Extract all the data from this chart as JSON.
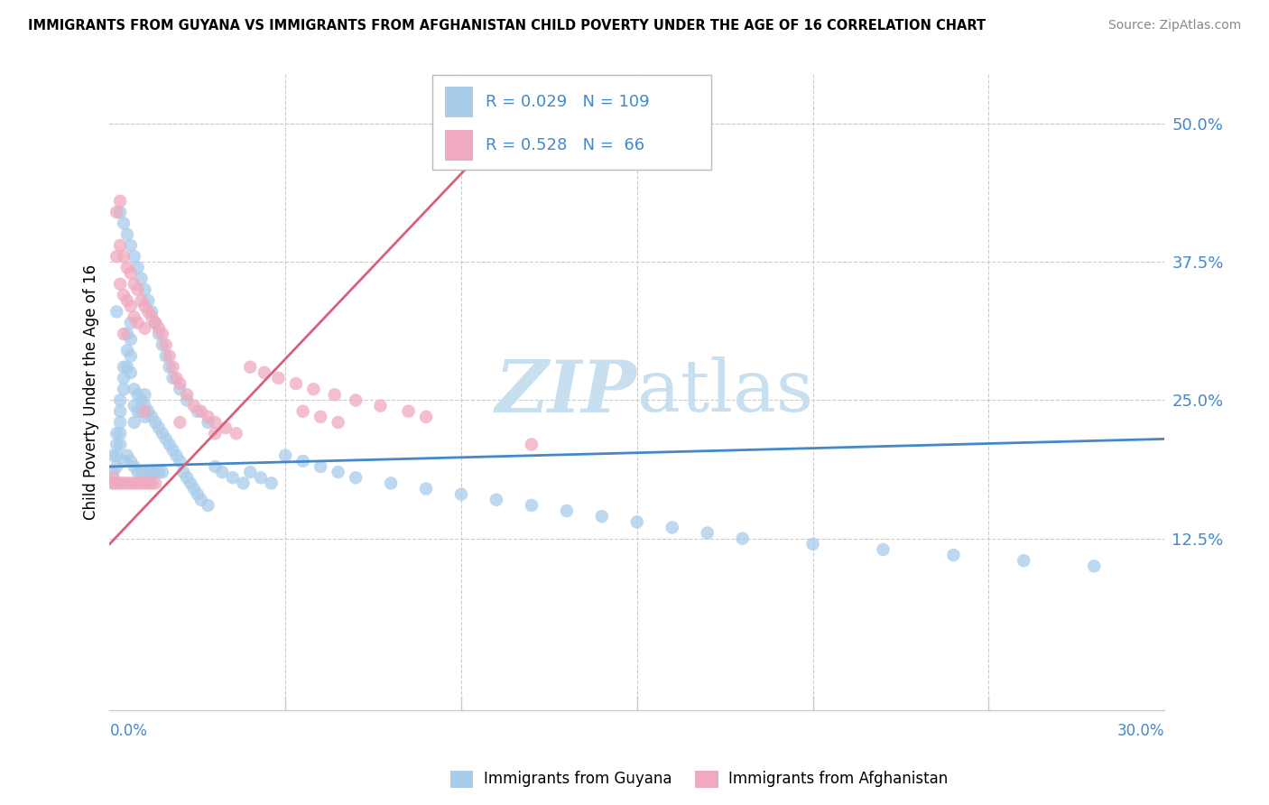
{
  "title": "IMMIGRANTS FROM GUYANA VS IMMIGRANTS FROM AFGHANISTAN CHILD POVERTY UNDER THE AGE OF 16 CORRELATION CHART",
  "source": "Source: ZipAtlas.com",
  "ylabel": "Child Poverty Under the Age of 16",
  "xlim": [
    0.0,
    0.3
  ],
  "ylim": [
    -0.03,
    0.545
  ],
  "ytick_vals": [
    0.125,
    0.25,
    0.375,
    0.5
  ],
  "ytick_labels": [
    "12.5%",
    "25.0%",
    "37.5%",
    "50.0%"
  ],
  "xtick_left": "0.0%",
  "xtick_right": "30.0%",
  "color_guyana": "#a8ccea",
  "color_afghanistan": "#f0aabf",
  "color_blue_text": "#4488cc",
  "color_pink_line": "#d9607a",
  "color_blue_line": "#4488cc",
  "color_grid": "#cccccc",
  "watermark_zip": "ZIP",
  "watermark_atlas": "atlas",
  "watermark_color_zip": "#c8dff0",
  "watermark_color_atlas": "#c8dff0",
  "blue_trend_y0": 0.19,
  "blue_trend_y1": 0.215,
  "pink_trend_x0": 0.0,
  "pink_trend_y0": 0.12,
  "pink_trend_x1": 0.115,
  "pink_trend_y1": 0.505,
  "guyana_x": [
    0.001,
    0.001,
    0.001,
    0.002,
    0.002,
    0.002,
    0.002,
    0.002,
    0.003,
    0.003,
    0.003,
    0.003,
    0.003,
    0.004,
    0.004,
    0.004,
    0.004,
    0.005,
    0.005,
    0.005,
    0.005,
    0.006,
    0.006,
    0.006,
    0.006,
    0.006,
    0.007,
    0.007,
    0.007,
    0.007,
    0.008,
    0.008,
    0.008,
    0.009,
    0.009,
    0.009,
    0.01,
    0.01,
    0.01,
    0.01,
    0.011,
    0.011,
    0.012,
    0.012,
    0.013,
    0.013,
    0.014,
    0.014,
    0.015,
    0.015,
    0.016,
    0.017,
    0.018,
    0.019,
    0.02,
    0.021,
    0.022,
    0.023,
    0.024,
    0.025,
    0.026,
    0.028,
    0.03,
    0.032,
    0.035,
    0.038,
    0.04,
    0.043,
    0.046,
    0.05,
    0.055,
    0.06,
    0.065,
    0.07,
    0.08,
    0.09,
    0.1,
    0.11,
    0.12,
    0.13,
    0.14,
    0.15,
    0.16,
    0.17,
    0.18,
    0.2,
    0.22,
    0.24,
    0.26,
    0.28,
    0.003,
    0.004,
    0.005,
    0.006,
    0.007,
    0.008,
    0.009,
    0.01,
    0.011,
    0.012,
    0.013,
    0.014,
    0.015,
    0.016,
    0.017,
    0.018,
    0.02,
    0.022,
    0.025,
    0.028
  ],
  "guyana_y": [
    0.2,
    0.185,
    0.175,
    0.33,
    0.22,
    0.21,
    0.2,
    0.19,
    0.25,
    0.24,
    0.23,
    0.22,
    0.21,
    0.28,
    0.27,
    0.26,
    0.195,
    0.31,
    0.295,
    0.28,
    0.2,
    0.32,
    0.305,
    0.29,
    0.275,
    0.195,
    0.26,
    0.245,
    0.23,
    0.19,
    0.255,
    0.24,
    0.185,
    0.25,
    0.24,
    0.185,
    0.255,
    0.245,
    0.235,
    0.185,
    0.24,
    0.185,
    0.235,
    0.185,
    0.23,
    0.185,
    0.225,
    0.185,
    0.22,
    0.185,
    0.215,
    0.21,
    0.205,
    0.2,
    0.195,
    0.185,
    0.18,
    0.175,
    0.17,
    0.165,
    0.16,
    0.155,
    0.19,
    0.185,
    0.18,
    0.175,
    0.185,
    0.18,
    0.175,
    0.2,
    0.195,
    0.19,
    0.185,
    0.18,
    0.175,
    0.17,
    0.165,
    0.16,
    0.155,
    0.15,
    0.145,
    0.14,
    0.135,
    0.13,
    0.125,
    0.12,
    0.115,
    0.11,
    0.105,
    0.1,
    0.42,
    0.41,
    0.4,
    0.39,
    0.38,
    0.37,
    0.36,
    0.35,
    0.34,
    0.33,
    0.32,
    0.31,
    0.3,
    0.29,
    0.28,
    0.27,
    0.26,
    0.25,
    0.24,
    0.23
  ],
  "afghanistan_x": [
    0.001,
    0.001,
    0.002,
    0.002,
    0.002,
    0.003,
    0.003,
    0.003,
    0.003,
    0.004,
    0.004,
    0.004,
    0.004,
    0.005,
    0.005,
    0.005,
    0.006,
    0.006,
    0.006,
    0.007,
    0.007,
    0.007,
    0.008,
    0.008,
    0.008,
    0.009,
    0.009,
    0.01,
    0.01,
    0.01,
    0.011,
    0.011,
    0.012,
    0.012,
    0.013,
    0.013,
    0.014,
    0.015,
    0.016,
    0.017,
    0.018,
    0.019,
    0.02,
    0.022,
    0.024,
    0.026,
    0.028,
    0.03,
    0.033,
    0.036,
    0.04,
    0.044,
    0.048,
    0.053,
    0.058,
    0.064,
    0.07,
    0.077,
    0.085,
    0.09,
    0.055,
    0.06,
    0.065,
    0.12,
    0.01,
    0.02,
    0.03
  ],
  "afghanistan_y": [
    0.18,
    0.175,
    0.42,
    0.38,
    0.175,
    0.43,
    0.39,
    0.355,
    0.175,
    0.38,
    0.345,
    0.31,
    0.175,
    0.37,
    0.34,
    0.175,
    0.365,
    0.335,
    0.175,
    0.355,
    0.325,
    0.175,
    0.35,
    0.32,
    0.175,
    0.34,
    0.175,
    0.335,
    0.315,
    0.175,
    0.33,
    0.175,
    0.325,
    0.175,
    0.32,
    0.175,
    0.315,
    0.31,
    0.3,
    0.29,
    0.28,
    0.27,
    0.265,
    0.255,
    0.245,
    0.24,
    0.235,
    0.23,
    0.225,
    0.22,
    0.28,
    0.275,
    0.27,
    0.265,
    0.26,
    0.255,
    0.25,
    0.245,
    0.24,
    0.235,
    0.24,
    0.235,
    0.23,
    0.21,
    0.24,
    0.23,
    0.22
  ]
}
